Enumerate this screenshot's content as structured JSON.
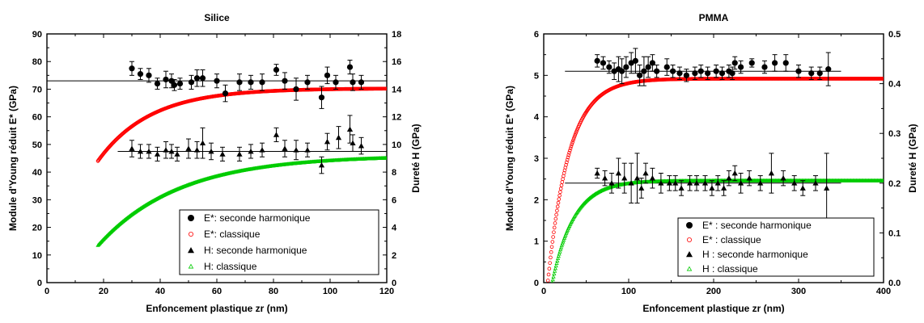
{
  "chart_data": [
    {
      "type": "scatter",
      "title": "Silice",
      "xlabel": "Enfoncement plastique zr (nm)",
      "ylabel": "Module d'Young réduit E* (GPa)",
      "y2label": "Dureté H (GPa)",
      "xlim": [
        0,
        120
      ],
      "ylim": [
        0,
        90
      ],
      "y2lim": [
        0,
        18
      ],
      "xticks": [
        "0",
        "20",
        "40",
        "60",
        "80",
        "100",
        "120"
      ],
      "yticks": [
        "0",
        "10",
        "20",
        "30",
        "40",
        "50",
        "60",
        "70",
        "80",
        "90"
      ],
      "y2ticks": [
        "0",
        "2",
        "4",
        "6",
        "8",
        "10",
        "12",
        "14",
        "16",
        "18"
      ],
      "legend_position": "bottom-right",
      "reference_lines": [
        {
          "axis": "y",
          "value": 73,
          "x_range": [
            0,
            120
          ]
        },
        {
          "axis": "y2",
          "value": 9.5,
          "x_range": [
            25,
            120
          ]
        }
      ],
      "series": [
        {
          "name": "E*: seconde harmonique",
          "axis": "y",
          "marker": "filled-circle",
          "color": "#000000",
          "x": [
            30,
            33,
            36,
            39,
            42,
            44,
            45,
            47,
            51,
            53,
            55,
            60,
            63,
            68,
            72,
            76,
            81,
            84,
            88,
            92,
            97,
            99,
            102,
            107,
            108,
            111
          ],
          "y": [
            77.5,
            75.5,
            75,
            72,
            73.5,
            73,
            71.5,
            72,
            72.5,
            74,
            74,
            73,
            68.5,
            72.5,
            72.5,
            72.5,
            77,
            73,
            70,
            72.5,
            67,
            75,
            72.5,
            78,
            72.5,
            72.5
          ],
          "err": [
            2.5,
            2,
            2.5,
            2,
            3,
            2.5,
            2,
            2,
            2.5,
            3,
            3,
            2.5,
            3,
            3,
            2.5,
            3,
            2,
            3,
            4,
            2.5,
            4,
            3,
            2.5,
            2.5,
            3,
            2.5
          ]
        },
        {
          "name": "E*: classique",
          "axis": "y",
          "marker": "open-circle",
          "color": "#ff0000",
          "curve": {
            "x_start": 18,
            "x_end": 120,
            "y_start": 44,
            "y_end": 70.3,
            "k": 0.054
          }
        },
        {
          "name": "H: seconde harmonique",
          "axis": "y2",
          "marker": "filled-triangle",
          "color": "#000000",
          "x": [
            30,
            33,
            36,
            39,
            42,
            44,
            46,
            50,
            53,
            55,
            58,
            62,
            68,
            72,
            76,
            81,
            84,
            88,
            92,
            97,
            99,
            103,
            107,
            108,
            111
          ],
          "y": [
            9.7,
            9.5,
            9.5,
            9.3,
            9.6,
            9.5,
            9.3,
            9.7,
            9.6,
            10.1,
            9.5,
            9.3,
            9.3,
            9.5,
            9.6,
            10.7,
            9.7,
            9.6,
            9.6,
            8.5,
            10.2,
            10.5,
            11.1,
            10.1,
            9.9
          ],
          "err": [
            0.6,
            0.5,
            0.5,
            0.5,
            0.6,
            0.5,
            0.5,
            0.7,
            0.6,
            1.1,
            0.6,
            0.5,
            0.5,
            0.5,
            0.5,
            0.5,
            0.6,
            0.7,
            0.5,
            0.6,
            0.6,
            0.8,
            1.0,
            0.6,
            0.6
          ]
        },
        {
          "name": "H: classique",
          "axis": "y2",
          "marker": "open-triangle",
          "color": "#00cc00",
          "curve": {
            "x_start": 18,
            "x_end": 120,
            "y_start": 2.7,
            "y_end": 9.2,
            "k": 0.035
          }
        }
      ]
    },
    {
      "type": "scatter",
      "title": "PMMA",
      "xlabel": "Enfoncement plastique zr (nm)",
      "ylabel": "Module d'Young réduit E* (GPa)",
      "y2label": "Dureté H (GPa)",
      "xlim": [
        0,
        400
      ],
      "ylim": [
        0,
        6
      ],
      "y2lim": [
        0,
        0.5
      ],
      "xticks": [
        "0",
        "100",
        "200",
        "300",
        "400"
      ],
      "yticks": [
        "0",
        "1",
        "2",
        "3",
        "4",
        "5",
        "6"
      ],
      "y2ticks": [
        "0.0",
        "0.1",
        "0.2",
        "0.3",
        "0.4",
        "0.5"
      ],
      "legend_position": "bottom-right",
      "reference_lines": [
        {
          "axis": "y",
          "value": 5.1,
          "x_range": [
            25,
            350
          ]
        },
        {
          "axis": "y",
          "value": 2.4,
          "x_range": [
            25,
            350
          ]
        }
      ],
      "series": [
        {
          "name": "E* : seconde harmonique",
          "axis": "y",
          "marker": "filled-circle",
          "color": "#000000",
          "x": [
            63,
            70,
            77,
            83,
            88,
            92,
            97,
            103,
            108,
            113,
            118,
            123,
            128,
            133,
            145,
            152,
            160,
            168,
            178,
            185,
            193,
            203,
            210,
            218,
            222,
            225,
            232,
            245,
            260,
            272,
            285,
            300,
            315,
            325,
            335
          ],
          "y": [
            5.35,
            5.3,
            5.2,
            5.1,
            5.15,
            5.1,
            5.2,
            5.3,
            5.35,
            5.0,
            5.1,
            5.2,
            5.3,
            5.1,
            5.2,
            5.1,
            5.05,
            5.0,
            5.05,
            5.1,
            5.05,
            5.1,
            5.05,
            5.1,
            5.05,
            5.3,
            5.2,
            5.3,
            5.2,
            5.3,
            5.3,
            5.1,
            5.05,
            5.05,
            5.15
          ],
          "err": [
            0.15,
            0.15,
            0.15,
            0.2,
            0.3,
            0.3,
            0.25,
            0.25,
            0.3,
            0.25,
            0.35,
            0.25,
            0.2,
            0.15,
            0.2,
            0.15,
            0.15,
            0.15,
            0.15,
            0.15,
            0.15,
            0.15,
            0.15,
            0.15,
            0.15,
            0.15,
            0.15,
            0.1,
            0.15,
            0.2,
            0.2,
            0.15,
            0.15,
            0.15,
            0.4
          ]
        },
        {
          "name": "E* : classique",
          "axis": "y",
          "marker": "open-circle",
          "color": "#ff0000",
          "curve": {
            "x_start": 5,
            "x_end": 400,
            "y_start": 0.05,
            "y_end": 4.92,
            "k": 0.04
          }
        },
        {
          "name": "H : seconde harmonique",
          "axis": "y2",
          "marker": "filled-triangle",
          "color": "#000000",
          "x": [
            63,
            72,
            80,
            88,
            95,
            103,
            110,
            115,
            120,
            128,
            138,
            148,
            155,
            162,
            172,
            180,
            190,
            198,
            205,
            212,
            218,
            225,
            232,
            242,
            255,
            268,
            282,
            295,
            305,
            320,
            333
          ],
          "y": [
            0.22,
            0.21,
            0.2,
            0.22,
            0.21,
            0.2,
            0.21,
            0.19,
            0.22,
            0.21,
            0.2,
            0.2,
            0.2,
            0.19,
            0.2,
            0.2,
            0.2,
            0.19,
            0.2,
            0.19,
            0.21,
            0.22,
            0.2,
            0.21,
            0.2,
            0.22,
            0.21,
            0.2,
            0.19,
            0.2,
            0.19
          ],
          "err": [
            0.01,
            0.015,
            0.02,
            0.03,
            0.03,
            0.04,
            0.05,
            0.02,
            0.02,
            0.02,
            0.02,
            0.015,
            0.015,
            0.015,
            0.015,
            0.015,
            0.015,
            0.015,
            0.015,
            0.015,
            0.015,
            0.015,
            0.02,
            0.015,
            0.015,
            0.04,
            0.015,
            0.015,
            0.015,
            0.015,
            0.07
          ]
        },
        {
          "name": "H : classique",
          "axis": "y2",
          "marker": "open-triangle",
          "color": "#00cc00",
          "curve": {
            "x_start": 10,
            "x_end": 400,
            "y_start": 0.0,
            "y_end": 0.205,
            "k": 0.04
          }
        }
      ]
    }
  ]
}
